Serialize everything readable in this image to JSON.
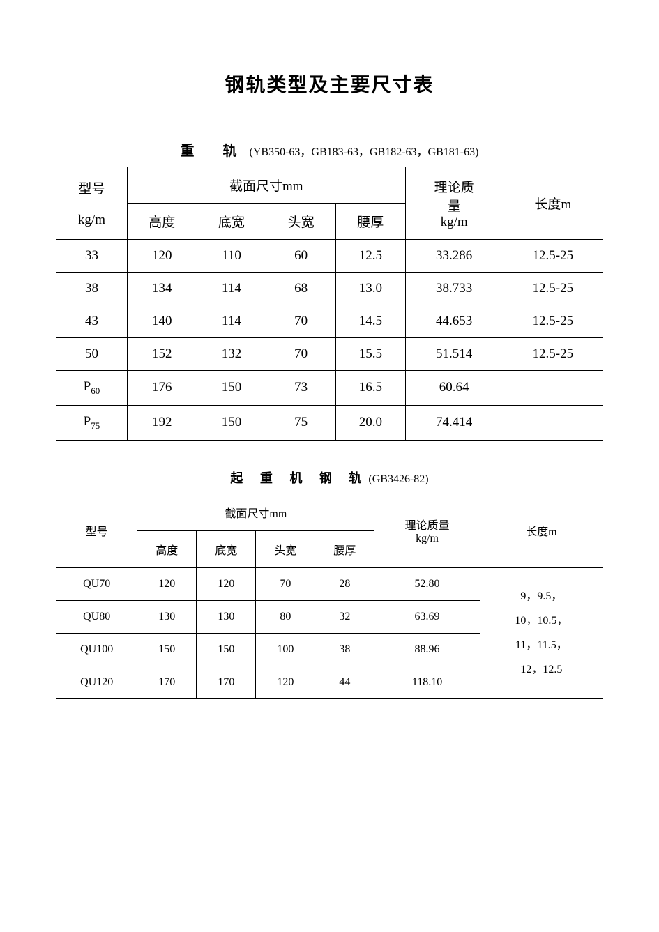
{
  "title": "钢轨类型及主要尺寸表",
  "table1": {
    "heading_bold": "重 轨",
    "heading_std": "(YB350-63，GB183-63，GB182-63，GB181-63)",
    "col_model_1": "型号",
    "col_model_2": "kg/m",
    "col_section": "截面尺寸mm",
    "col_h": "高度",
    "col_bw": "底宽",
    "col_hw": "头宽",
    "col_wt": "腰厚",
    "col_mass_1": "理论质",
    "col_mass_2": "量",
    "col_mass_3": "kg/m",
    "col_len": "长度m",
    "rows": [
      {
        "model": "33",
        "h": "120",
        "bw": "110",
        "hw": "60",
        "wt": "12.5",
        "mass": "33.286",
        "len": "12.5-25"
      },
      {
        "model": "38",
        "h": "134",
        "bw": "114",
        "hw": "68",
        "wt": "13.0",
        "mass": "38.733",
        "len": "12.5-25"
      },
      {
        "model": "43",
        "h": "140",
        "bw": "114",
        "hw": "70",
        "wt": "14.5",
        "mass": "44.653",
        "len": "12.5-25"
      },
      {
        "model": "50",
        "h": "152",
        "bw": "132",
        "hw": "70",
        "wt": "15.5",
        "mass": "51.514",
        "len": "12.5-25"
      },
      {
        "model_pre": "P",
        "model_sub": "60",
        "h": "176",
        "bw": "150",
        "hw": "73",
        "wt": "16.5",
        "mass": "60.64",
        "len": ""
      },
      {
        "model_pre": "P",
        "model_sub": "75",
        "h": "192",
        "bw": "150",
        "hw": "75",
        "wt": "20.0",
        "mass": "74.414",
        "len": ""
      }
    ]
  },
  "table2": {
    "heading_bold": "起 重 机 钢 轨",
    "heading_std": "(GB3426-82)",
    "col_model": "型号",
    "col_section": "截面尺寸mm",
    "col_h": "高度",
    "col_bw": "底宽",
    "col_hw": "头宽",
    "col_wt": "腰厚",
    "col_mass_1": "理论质量",
    "col_mass_2": "kg/m",
    "col_len": "长度m",
    "length_text": "9，9.5，\n10，10.5，\n11，11.5，\n12，12.5",
    "rows": [
      {
        "model": "QU70",
        "h": "120",
        "bw": "120",
        "hw": "70",
        "wt": "28",
        "mass": "52.80"
      },
      {
        "model": "QU80",
        "h": "130",
        "bw": "130",
        "hw": "80",
        "wt": "32",
        "mass": "63.69"
      },
      {
        "model": "QU100",
        "h": "150",
        "bw": "150",
        "hw": "100",
        "wt": "38",
        "mass": "88.96"
      },
      {
        "model": "QU120",
        "h": "170",
        "bw": "170",
        "hw": "120",
        "wt": "44",
        "mass": "118.10"
      }
    ]
  }
}
